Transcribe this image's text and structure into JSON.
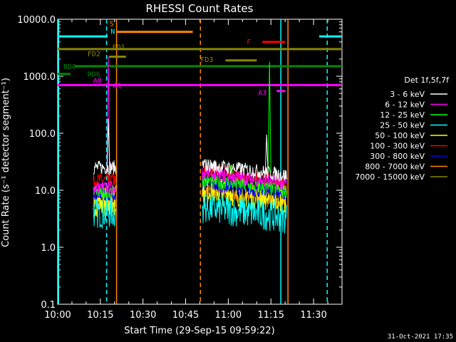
{
  "chart_data": {
    "type": "line",
    "title": "RHESSI Count Rates",
    "xlabel": "Start Time (29-Sep-15 09:59:22)",
    "ylabel": "Count Rate (s⁻¹ detector segment⁻¹)",
    "footer": "31-Oct-2021 17:35",
    "yscale": "log",
    "ylim": [
      0.1,
      10000
    ],
    "xlim_min": [
      0,
      100
    ],
    "x_ticks": [
      {
        "label": "10:00",
        "min": 0
      },
      {
        "label": "10:15",
        "min": 15
      },
      {
        "label": "10:30",
        "min": 30
      },
      {
        "label": "10:45",
        "min": 45
      },
      {
        "label": "11:00",
        "min": 60
      },
      {
        "label": "11:15",
        "min": 75
      },
      {
        "label": "11:30",
        "min": 90
      }
    ],
    "y_ticks": [
      {
        "label": "10000.0",
        "value": 10000
      },
      {
        "label": "1000.0",
        "value": 1000
      },
      {
        "label": "100.0",
        "value": 100
      },
      {
        "label": "10.0",
        "value": 10
      },
      {
        "label": "1.0",
        "value": 1
      },
      {
        "label": "0.1",
        "value": 0.1
      }
    ],
    "legend": {
      "title": "Det 1f,5f,7f",
      "placement": "right",
      "entries": [
        {
          "label": "3 - 6 keV",
          "color": "#ffffff"
        },
        {
          "label": "6 - 12 keV",
          "color": "#ff00ff"
        },
        {
          "label": "12 - 25 keV",
          "color": "#00ff00"
        },
        {
          "label": "25 - 50 keV",
          "color": "#00ffff"
        },
        {
          "label": "50 - 100 keV",
          "color": "#ffff00"
        },
        {
          "label": "100 - 300 keV",
          "color": "#ff0000"
        },
        {
          "label": "300 - 800 keV",
          "color": "#0000ff"
        },
        {
          "label": "800 - 7000 keV",
          "color": "#ff8800"
        },
        {
          "label": "7000 - 15000 keV",
          "color": "#888800"
        }
      ]
    },
    "segments": [
      {
        "start": 12.5,
        "end": 20.5,
        "levels": [
          25,
          11,
          9.5,
          4,
          6.5,
          15,
          8,
          6,
          6
        ]
      },
      {
        "start": 50.8,
        "end": 80.5,
        "levels": [
          28,
          20,
          15,
          5,
          11,
          22,
          13,
          10,
          9
        ]
      }
    ],
    "spikes": [
      {
        "x": 17.8,
        "series": 1,
        "value": 2200
      },
      {
        "x": 17.8,
        "series": 0,
        "value": 180
      },
      {
        "x": 61,
        "series": 2,
        "value": 28
      },
      {
        "x": 74.5,
        "series": 2,
        "value": 1800
      },
      {
        "x": 73.5,
        "series": 0,
        "value": 95
      }
    ],
    "attenuator_flags": [
      {
        "label": "S",
        "color": "#ff8800",
        "y": 6000,
        "start": 20.7,
        "end": 47.5
      },
      {
        "label": "N",
        "color": "#00ffff",
        "y": 5000,
        "start": 0,
        "end": 17.5
      },
      {
        "label": "N",
        "color": "#00ffff",
        "y": 5000,
        "start": 92,
        "end": 100
      },
      {
        "label": "FD1",
        "color": "#888800",
        "y": 3000,
        "start": 0,
        "end": 100
      },
      {
        "label": "FD2",
        "color": "#888800",
        "y": 2200,
        "start": 18,
        "end": 24
      },
      {
        "label": "FD3",
        "color": "#888800",
        "y": 1900,
        "start": 59,
        "end": 70
      },
      {
        "label": "RD0",
        "color": "#008800",
        "y": 1500,
        "start": 6,
        "end": 100
      },
      {
        "label": "RD6",
        "color": "#008800",
        "y": 1100,
        "start": 0,
        "end": 4.5
      },
      {
        "label": "A0",
        "color": "#ff00ff",
        "y": 700,
        "start": 0,
        "end": 100
      },
      {
        "label": "A1",
        "color": "#ff00ff",
        "y": 700,
        "start": 19,
        "end": 20
      },
      {
        "label": "A3",
        "color": "#ff00ff",
        "y": 550,
        "start": 77,
        "end": 80
      },
      {
        "label": "F",
        "color": "#ff0000",
        "y": 4000,
        "start": 72,
        "end": 80
      }
    ],
    "vlines": [
      {
        "x": 0.3,
        "color": "#00ffff",
        "dash": false
      },
      {
        "x": 17.2,
        "color": "#00ffff",
        "dash": true
      },
      {
        "x": 20.7,
        "color": "#ff8800",
        "dash": false
      },
      {
        "x": 50.2,
        "color": "#ff8800",
        "dash": true
      },
      {
        "x": 78.5,
        "color": "#00ffff",
        "dash": false
      },
      {
        "x": 81,
        "color": "#ff8800",
        "dash": false
      },
      {
        "x": 94.8,
        "color": "#00ffff",
        "dash": true
      }
    ],
    "flag_labels": [
      {
        "text": "S",
        "x": 18.2,
        "y": 8500,
        "color": "#ff8800"
      },
      {
        "text": "N",
        "x": 18.6,
        "y": 6200,
        "color": "#00ffff"
      },
      {
        "text": "FD1",
        "x": 19.2,
        "y": 3300,
        "color": "#888800"
      },
      {
        "text": "FD2",
        "x": 10.5,
        "y": 2500,
        "color": "#888800"
      },
      {
        "text": "FD3",
        "x": 50.2,
        "y": 2000,
        "color": "#888800"
      },
      {
        "text": "RD0",
        "x": 2,
        "y": 1500,
        "color": "#008800"
      },
      {
        "text": "RD6",
        "x": 10.5,
        "y": 1100,
        "color": "#008800"
      },
      {
        "text": "A0",
        "x": 12.5,
        "y": 850,
        "color": "#ff00ff"
      },
      {
        "text": "A1",
        "x": 19.5,
        "y": 700,
        "color": "#ff00ff"
      },
      {
        "text": "A3",
        "x": 70.5,
        "y": 520,
        "color": "#ff00ff"
      },
      {
        "text": "F",
        "x": 66.5,
        "y": 4100,
        "color": "#ff0000"
      }
    ]
  }
}
